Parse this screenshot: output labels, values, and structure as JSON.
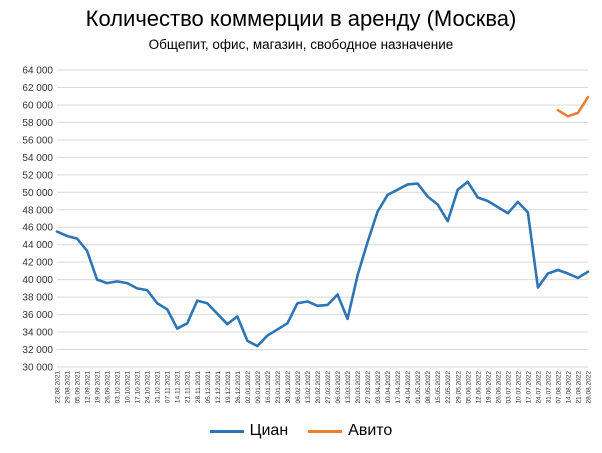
{
  "chart_data": {
    "type": "line",
    "title": "Количество коммерции в аренду (Москва)",
    "subtitle": "Общепит, офис, магазин, свободное назначение",
    "xlabel": "",
    "ylabel": "",
    "ylim": [
      30000,
      64000
    ],
    "yticks": [
      30000,
      32000,
      34000,
      36000,
      38000,
      40000,
      42000,
      44000,
      46000,
      48000,
      50000,
      52000,
      54000,
      56000,
      58000,
      60000,
      62000,
      64000
    ],
    "ytick_labels": [
      "30 000",
      "32 000",
      "34 000",
      "36 000",
      "38 000",
      "40 000",
      "42 000",
      "44 000",
      "46 000",
      "48 000",
      "50 000",
      "52 000",
      "54 000",
      "56 000",
      "58 000",
      "60 000",
      "62 000",
      "64 000"
    ],
    "grid": true,
    "legend_position": "bottom",
    "x": [
      "22.08.2021",
      "29.08.2021",
      "05.09.2021",
      "12.09.2021",
      "19.09.2021",
      "26.09.2021",
      "03.10.2021",
      "10.10.2021",
      "17.10.2021",
      "24.10.2021",
      "31.10.2021",
      "07.11.2021",
      "14.11.2021",
      "21.11.2021",
      "28.11.2021",
      "05.12.2021",
      "12.12.2021",
      "19.12.2021",
      "26.12.2021",
      "02.01.2022",
      "09.01.2022",
      "16.01.2022",
      "23.01.2022",
      "30.01.2022",
      "06.02.2022",
      "13.02.2022",
      "20.02.2022",
      "27.02.2022",
      "06.03.2022",
      "13.03.2022",
      "20.03.2022",
      "27.03.2022",
      "03.04.2022",
      "10.04.2022",
      "17.04.2022",
      "24.04.2022",
      "01.05.2022",
      "08.05.2022",
      "15.05.2022",
      "22.05.2022",
      "29.05.2022",
      "05.06.2022",
      "12.06.2022",
      "19.06.2022",
      "26.06.2022",
      "03.07.2022",
      "10.07.2022",
      "17.07.2022",
      "24.07.2022",
      "31.07.2022",
      "07.08.2022",
      "14.08.2022",
      "21.08.2022",
      "28.08.2022"
    ],
    "series": [
      {
        "name": "Циан",
        "color": "#2e75b6",
        "values": [
          45500,
          45000,
          44700,
          43300,
          40000,
          39600,
          39800,
          39600,
          39000,
          38800,
          37300,
          36600,
          34400,
          35000,
          37600,
          37300,
          36100,
          34900,
          35800,
          33000,
          32400,
          33600,
          34300,
          35000,
          37300,
          37500,
          37000,
          37100,
          38300,
          35500,
          40500,
          44300,
          47800,
          49700,
          50300,
          50900,
          51000,
          49500,
          48600,
          46700,
          50300,
          51200,
          49400,
          49000,
          48300,
          47600,
          48900,
          47700,
          39100,
          40700,
          41100,
          40700,
          40200,
          40900
        ]
      },
      {
        "name": "Авито",
        "color": "#ed7d31",
        "values": [
          null,
          null,
          null,
          null,
          null,
          null,
          null,
          null,
          null,
          null,
          null,
          null,
          null,
          null,
          null,
          null,
          null,
          null,
          null,
          null,
          null,
          null,
          null,
          null,
          null,
          null,
          null,
          null,
          null,
          null,
          null,
          null,
          null,
          null,
          null,
          null,
          null,
          null,
          null,
          null,
          null,
          null,
          null,
          null,
          null,
          null,
          null,
          null,
          null,
          null,
          59400,
          58700,
          59100,
          60900
        ]
      }
    ]
  }
}
